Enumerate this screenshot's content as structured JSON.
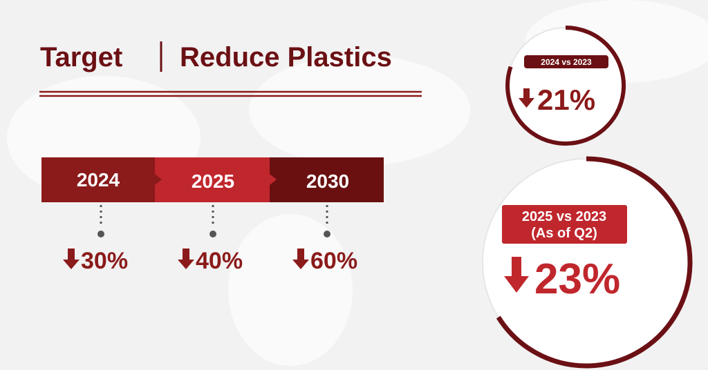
{
  "header": {
    "title_left": "Target",
    "title_right": "Reduce Plastics"
  },
  "timeline": [
    {
      "year": "2024",
      "target": "30%"
    },
    {
      "year": "2025",
      "target": "40%"
    },
    {
      "year": "2030",
      "target": "60%"
    }
  ],
  "results": [
    {
      "label": "2024 vs 2023",
      "change": "21%"
    },
    {
      "label": "2025 vs 2023",
      "note": "(As of Q2)",
      "change": "23%"
    }
  ]
}
